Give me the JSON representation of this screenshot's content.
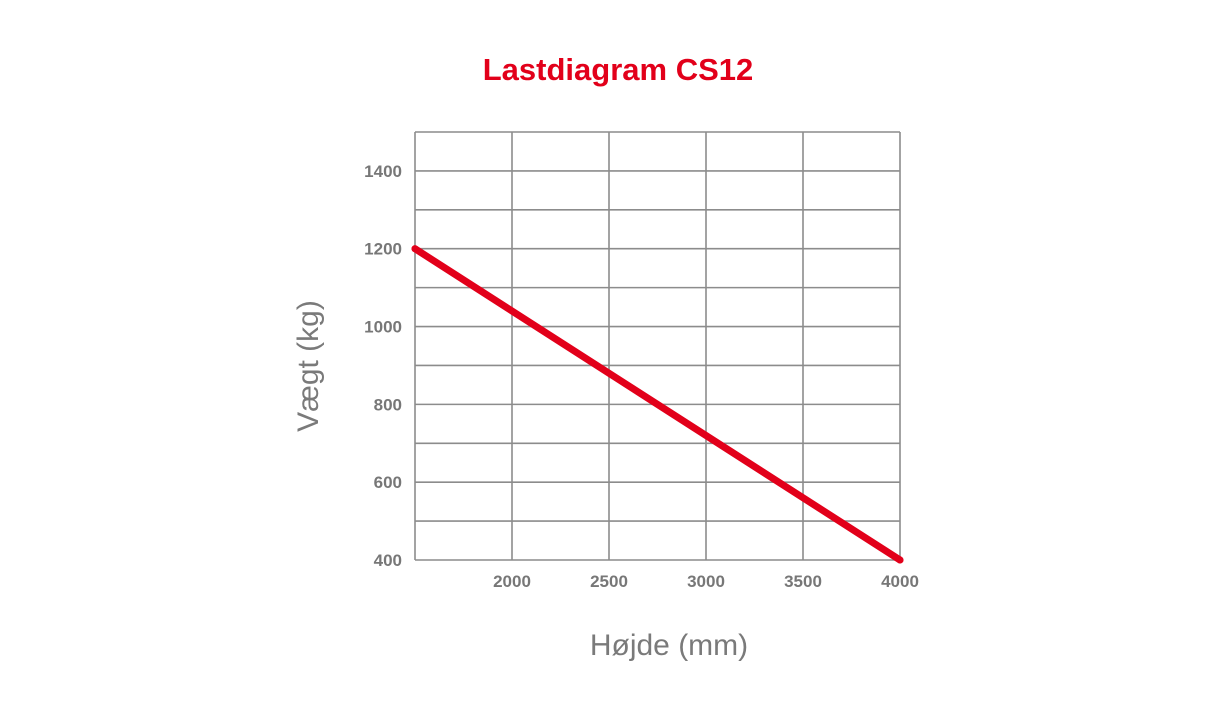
{
  "chart_data": {
    "type": "line",
    "title": "Lastdiagram CS12",
    "xlabel": "Højde (mm)",
    "ylabel": "Vægt (kg)",
    "xlim": [
      1500,
      4000
    ],
    "ylim": [
      400,
      1500
    ],
    "x_ticks": [
      2000,
      2500,
      3000,
      3500,
      4000
    ],
    "x_tick_labels": [
      "2000",
      "2500",
      "3000",
      "3500",
      "4000"
    ],
    "y_ticks": [
      400,
      600,
      800,
      1000,
      1200,
      1400
    ],
    "y_tick_labels": [
      "400",
      "600",
      "800",
      "1000",
      "1200",
      "1400"
    ],
    "x_grid": [
      1500,
      2000,
      2500,
      3000,
      3500,
      4000
    ],
    "y_grid": [
      400,
      500,
      600,
      700,
      800,
      900,
      1000,
      1100,
      1200,
      1300,
      1400,
      1500
    ],
    "grid": true,
    "series": [
      {
        "x": [
          1500,
          4000
        ],
        "y": [
          1200,
          400
        ],
        "color": "#e2001a"
      }
    ]
  }
}
